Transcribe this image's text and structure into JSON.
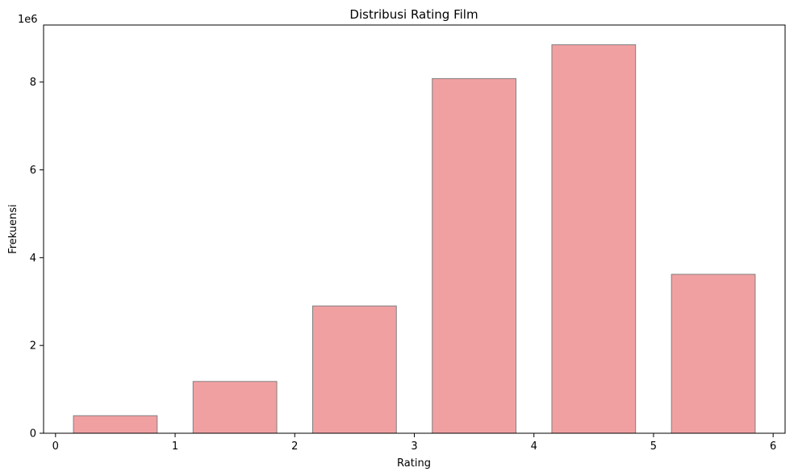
{
  "chart_data": {
    "type": "bar",
    "title": "Distribusi Rating Film",
    "xlabel": "Rating",
    "ylabel": "Frekuensi",
    "y_scale_label": "1e6",
    "y_multiplier": 1000000,
    "xlim": [
      -0.1,
      6.1
    ],
    "ylim": [
      0,
      9300000
    ],
    "x_ticks": [
      0,
      1,
      2,
      3,
      4,
      5,
      6
    ],
    "y_ticks": [
      0,
      2,
      4,
      6,
      8
    ],
    "bars": [
      {
        "x_start": 0.15,
        "x_end": 0.85,
        "value": 400000
      },
      {
        "x_start": 1.15,
        "x_end": 1.85,
        "value": 1180000
      },
      {
        "x_start": 2.15,
        "x_end": 2.85,
        "value": 2900000
      },
      {
        "x_start": 3.15,
        "x_end": 3.85,
        "value": 8080000
      },
      {
        "x_start": 4.15,
        "x_end": 4.85,
        "value": 8850000
      },
      {
        "x_start": 5.15,
        "x_end": 5.85,
        "value": 3620000
      }
    ],
    "bar_color": "#f1a0a2",
    "bar_edge_color": "#808080",
    "grid": false,
    "legend": "none"
  }
}
